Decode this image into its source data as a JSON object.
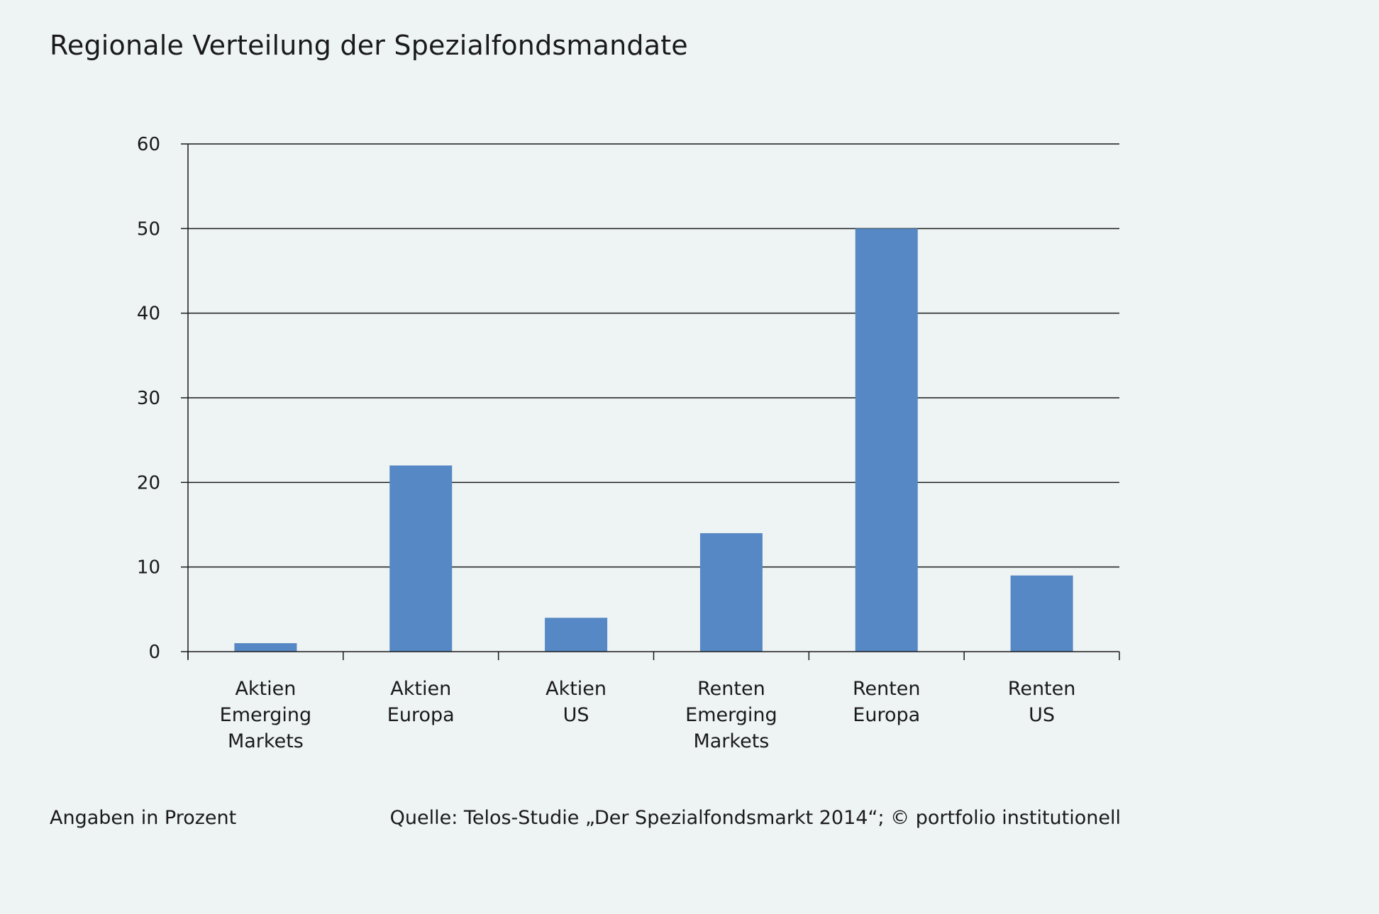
{
  "chart_data": {
    "type": "bar",
    "title": "Regionale Verteilung der Spezialfondsmandate",
    "categories": [
      [
        "Aktien",
        "Emerging",
        "Markets"
      ],
      [
        "Aktien",
        "Europa"
      ],
      [
        "Aktien",
        "US"
      ],
      [
        "Renten",
        "Emerging",
        "Markets"
      ],
      [
        "Renten",
        "Europa"
      ],
      [
        "Renten",
        "US"
      ]
    ],
    "values": [
      1,
      22,
      4,
      14,
      50,
      9
    ],
    "ylim": [
      0,
      60
    ],
    "yticks": [
      0,
      10,
      20,
      30,
      40,
      50,
      60
    ],
    "xlabel": "",
    "ylabel": "",
    "grid": true,
    "bar_color": "#5588c4",
    "grid_color": "#1a1a1a"
  },
  "footer": {
    "note": "Angaben in Prozent",
    "source": "Quelle: Telos-Studie „Der Spezialfondsmarkt 2014“; © portfolio institutionell"
  }
}
